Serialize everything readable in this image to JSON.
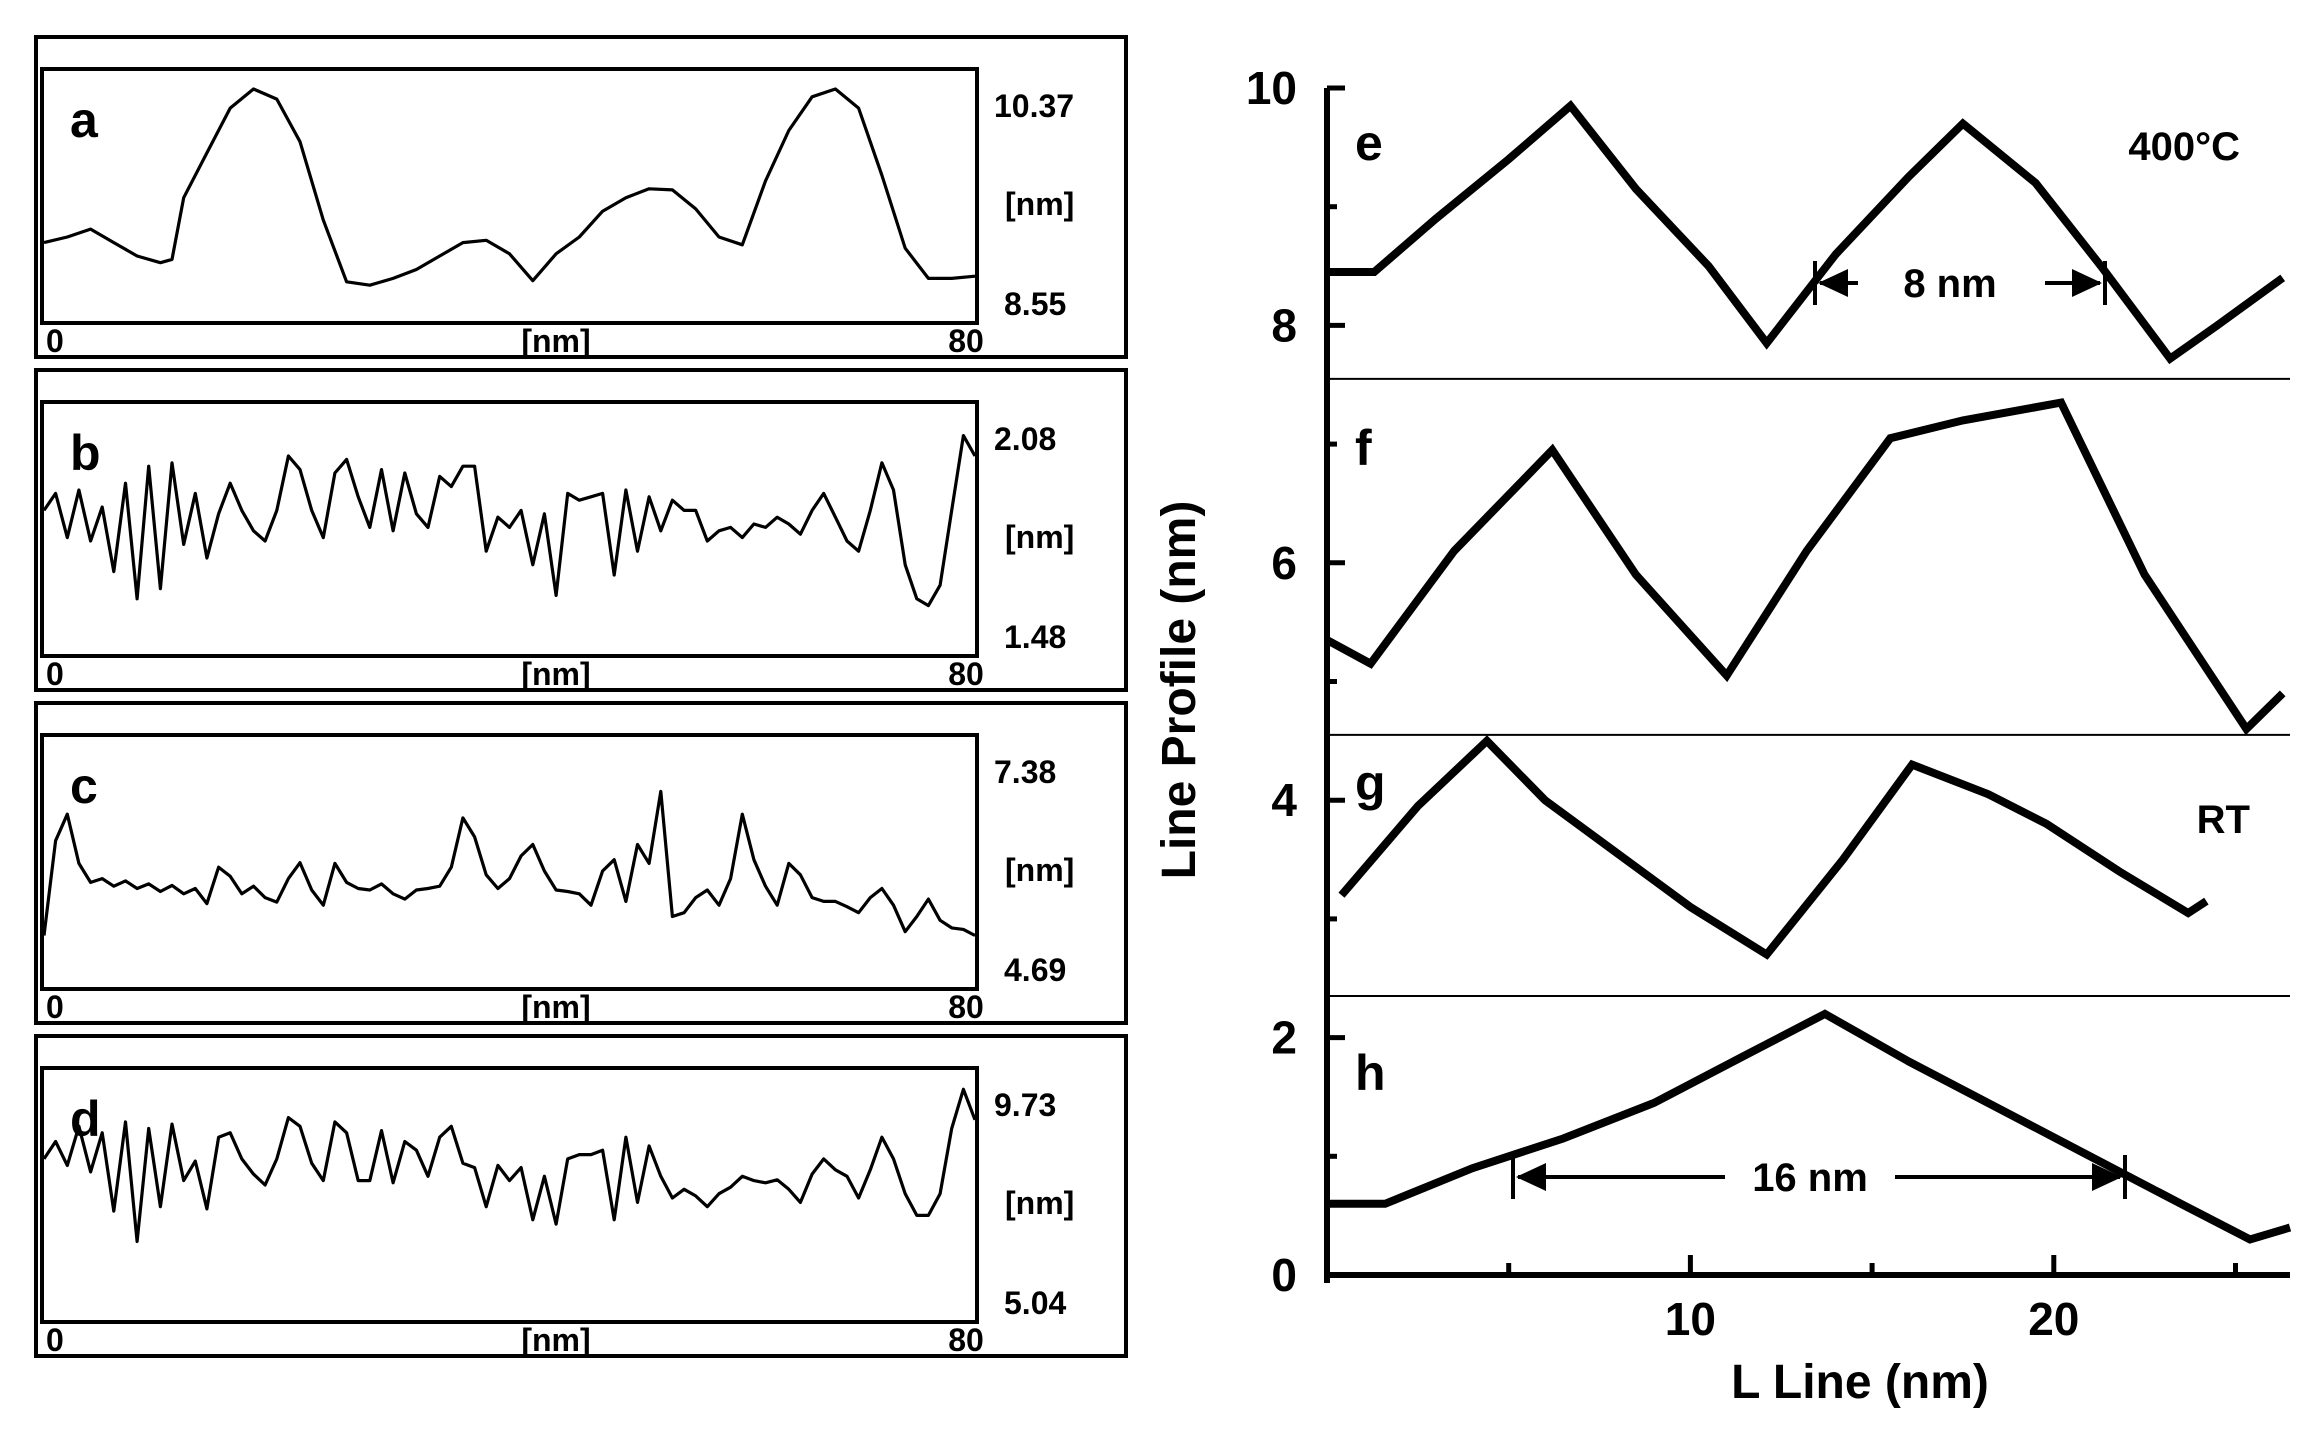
{
  "chart_data": [
    {
      "type": "line",
      "panel": "a",
      "xlabel": "[nm]",
      "x_range_labels": [
        "0",
        "80"
      ],
      "x_range": [
        0,
        80
      ],
      "ylabel": "[nm]",
      "y_range_labels": [
        "10.37",
        "8.55"
      ],
      "y_range": [
        8.55,
        10.37
      ],
      "series": [
        {
          "name": "a",
          "x": [
            0,
            2,
            4,
            6,
            8,
            10,
            11,
            12,
            14,
            16,
            18,
            20,
            22,
            24,
            26,
            28,
            30,
            32,
            34,
            36,
            38,
            40,
            42,
            44,
            46,
            48,
            50,
            52,
            54,
            56,
            58,
            60,
            62,
            64,
            66,
            68,
            70,
            72,
            74,
            76,
            78,
            80
          ],
          "y": [
            9.0,
            9.05,
            9.12,
            9.0,
            8.88,
            8.82,
            8.85,
            9.4,
            9.8,
            10.2,
            10.37,
            10.28,
            9.9,
            9.2,
            8.65,
            8.62,
            8.68,
            8.76,
            8.88,
            9.0,
            9.02,
            8.9,
            8.66,
            8.9,
            9.05,
            9.28,
            9.4,
            9.48,
            9.47,
            9.3,
            9.05,
            8.98,
            9.55,
            10.0,
            10.3,
            10.37,
            10.2,
            9.6,
            8.95,
            8.68,
            8.68,
            8.7
          ]
        }
      ]
    },
    {
      "type": "line",
      "panel": "b",
      "xlabel": "[nm]",
      "x_range_labels": [
        "0",
        "80"
      ],
      "x_range": [
        0,
        80
      ],
      "ylabel": "[nm]",
      "y_range_labels": [
        "2.08",
        "1.48"
      ],
      "y_range": [
        1.48,
        2.08
      ],
      "series": [
        {
          "name": "b",
          "x": [
            0,
            1,
            2,
            3,
            4,
            5,
            6,
            7,
            8,
            9,
            10,
            11,
            12,
            13,
            14,
            15,
            16,
            17,
            18,
            19,
            20,
            21,
            22,
            23,
            24,
            25,
            26,
            27,
            28,
            29,
            30,
            31,
            32,
            33,
            34,
            35,
            36,
            37,
            38,
            39,
            40,
            41,
            42,
            43,
            44,
            45,
            46,
            47,
            48,
            49,
            50,
            51,
            52,
            53,
            54,
            55,
            56,
            57,
            58,
            59,
            60,
            61,
            62,
            63,
            64,
            65,
            66,
            67,
            68,
            69,
            70,
            71,
            72,
            73,
            74,
            75,
            76,
            77,
            78,
            79,
            80
          ],
          "y": [
            1.82,
            1.87,
            1.74,
            1.88,
            1.73,
            1.83,
            1.64,
            1.9,
            1.56,
            1.95,
            1.59,
            1.96,
            1.72,
            1.87,
            1.68,
            1.81,
            1.9,
            1.82,
            1.76,
            1.73,
            1.82,
            1.98,
            1.94,
            1.82,
            1.74,
            1.93,
            1.97,
            1.86,
            1.77,
            1.94,
            1.76,
            1.93,
            1.81,
            1.77,
            1.92,
            1.89,
            1.95,
            1.95,
            1.7,
            1.8,
            1.77,
            1.82,
            1.66,
            1.81,
            1.57,
            1.87,
            1.85,
            1.86,
            1.87,
            1.63,
            1.88,
            1.7,
            1.86,
            1.76,
            1.85,
            1.82,
            1.82,
            1.73,
            1.76,
            1.77,
            1.74,
            1.78,
            1.77,
            1.8,
            1.78,
            1.75,
            1.82,
            1.87,
            1.8,
            1.73,
            1.7,
            1.82,
            1.96,
            1.88,
            1.66,
            1.56,
            1.54,
            1.6,
            1.82,
            2.04,
            1.98
          ]
        }
      ]
    },
    {
      "type": "line",
      "panel": "c",
      "xlabel": "[nm]",
      "x_range_labels": [
        "0",
        "80"
      ],
      "x_range": [
        0,
        80
      ],
      "ylabel": "[nm]",
      "y_range_labels": [
        "7.38",
        "4.69"
      ],
      "y_range": [
        4.69,
        7.38
      ],
      "series": [
        {
          "name": "c",
          "x": [
            0,
            1,
            2,
            3,
            4,
            5,
            6,
            7,
            8,
            9,
            10,
            11,
            12,
            13,
            14,
            15,
            16,
            17,
            18,
            19,
            20,
            21,
            22,
            23,
            24,
            25,
            26,
            27,
            28,
            29,
            30,
            31,
            32,
            33,
            34,
            35,
            36,
            37,
            38,
            39,
            40,
            41,
            42,
            43,
            44,
            45,
            46,
            47,
            48,
            49,
            50,
            51,
            52,
            53,
            54,
            55,
            56,
            57,
            58,
            59,
            60,
            61,
            62,
            63,
            64,
            65,
            66,
            67,
            68,
            69,
            70,
            71,
            72,
            73,
            74,
            75,
            76,
            77,
            78,
            79,
            80
          ],
          "y": [
            5.0,
            6.25,
            6.6,
            5.95,
            5.7,
            5.75,
            5.65,
            5.72,
            5.62,
            5.68,
            5.58,
            5.66,
            5.55,
            5.62,
            5.42,
            5.9,
            5.78,
            5.55,
            5.65,
            5.5,
            5.44,
            5.75,
            5.96,
            5.6,
            5.4,
            5.95,
            5.7,
            5.62,
            5.6,
            5.68,
            5.55,
            5.48,
            5.6,
            5.62,
            5.65,
            5.9,
            6.55,
            6.3,
            5.8,
            5.62,
            5.75,
            6.05,
            6.2,
            5.85,
            5.6,
            5.58,
            5.55,
            5.4,
            5.85,
            6.0,
            5.45,
            6.2,
            5.95,
            6.9,
            5.25,
            5.3,
            5.5,
            5.6,
            5.4,
            5.75,
            6.6,
            6.0,
            5.65,
            5.4,
            5.95,
            5.8,
            5.5,
            5.45,
            5.45,
            5.38,
            5.3,
            5.5,
            5.62,
            5.4,
            5.05,
            5.25,
            5.48,
            5.2,
            5.1,
            5.08,
            5.0
          ]
        }
      ]
    },
    {
      "type": "line",
      "panel": "d",
      "xlabel": "[nm]",
      "x_range_labels": [
        "0",
        "80"
      ],
      "x_range": [
        0,
        80
      ],
      "ylabel": "[nm]",
      "y_range_labels": [
        "9.73",
        "5.04"
      ],
      "y_range": [
        5.04,
        9.73
      ],
      "series": [
        {
          "name": "d",
          "x": [
            0,
            1,
            2,
            3,
            4,
            5,
            6,
            7,
            8,
            9,
            10,
            11,
            12,
            13,
            14,
            15,
            16,
            17,
            18,
            19,
            20,
            21,
            22,
            23,
            24,
            25,
            26,
            27,
            28,
            29,
            30,
            31,
            32,
            33,
            34,
            35,
            36,
            37,
            38,
            39,
            40,
            41,
            42,
            43,
            44,
            45,
            46,
            47,
            48,
            49,
            50,
            51,
            52,
            53,
            54,
            55,
            56,
            57,
            58,
            59,
            60,
            61,
            62,
            63,
            64,
            65,
            66,
            67,
            68,
            69,
            70,
            71,
            72,
            73,
            74,
            75,
            76,
            77,
            78,
            79,
            80
          ],
          "y": [
            8.1,
            8.5,
            7.95,
            8.85,
            7.8,
            8.7,
            6.9,
            8.95,
            6.2,
            8.8,
            7.0,
            8.9,
            7.6,
            8.05,
            6.95,
            8.6,
            8.7,
            8.1,
            7.75,
            7.5,
            8.1,
            9.05,
            8.85,
            8.0,
            7.6,
            8.95,
            8.7,
            7.6,
            7.6,
            8.75,
            7.55,
            8.5,
            8.3,
            7.7,
            8.6,
            8.85,
            8.0,
            7.9,
            7.0,
            7.95,
            7.6,
            7.9,
            6.7,
            7.7,
            6.6,
            8.1,
            8.2,
            8.2,
            8.3,
            6.7,
            8.6,
            7.1,
            8.4,
            7.7,
            7.2,
            7.4,
            7.25,
            7.0,
            7.3,
            7.45,
            7.7,
            7.6,
            7.55,
            7.62,
            7.4,
            7.1,
            7.75,
            8.1,
            7.85,
            7.7,
            7.2,
            7.85,
            8.6,
            8.1,
            7.3,
            6.8,
            6.8,
            7.3,
            8.8,
            9.7,
            9.0
          ]
        }
      ]
    },
    {
      "type": "line",
      "panels": [
        "e",
        "f",
        "g",
        "h"
      ],
      "title": "",
      "xlabel": "L Line (nm)",
      "ylabel": "Line Profile (nm)",
      "xlim": [
        0,
        26.5
      ],
      "ylim": [
        0,
        10
      ],
      "x_ticks": [
        "10",
        "20"
      ],
      "y_ticks": [
        "0",
        "2",
        "4",
        "6",
        "8",
        "10"
      ],
      "annotations": [
        "400°C",
        "RT",
        "8 nm",
        "16 nm"
      ],
      "series": [
        {
          "name": "e",
          "x": [
            0,
            1.3,
            3,
            5,
            6.7,
            8.5,
            10.5,
            12.1,
            14,
            16,
            17.5,
            19.5,
            21.3,
            23.2,
            24.5,
            26.3
          ],
          "y": [
            8.45,
            8.45,
            8.9,
            9.4,
            9.85,
            9.15,
            8.5,
            7.85,
            8.6,
            9.25,
            9.7,
            9.2,
            8.5,
            7.72,
            8.0,
            8.4
          ]
        },
        {
          "name": "f",
          "x": [
            0,
            1.2,
            3.5,
            6.2,
            8.5,
            11,
            13.2,
            15.5,
            17.5,
            20.2,
            22.5,
            25.3,
            26.3
          ],
          "y": [
            5.35,
            5.15,
            6.1,
            6.95,
            5.9,
            5.05,
            6.1,
            7.05,
            7.2,
            7.35,
            5.9,
            4.6,
            4.9
          ]
        },
        {
          "name": "g",
          "x": [
            0.4,
            2.5,
            4.4,
            6,
            8,
            10,
            12.1,
            14.2,
            16.1,
            18.2,
            19.8,
            21.8,
            23.7,
            24.2
          ],
          "y": [
            3.2,
            3.95,
            4.5,
            4.0,
            3.55,
            3.1,
            2.7,
            3.5,
            4.3,
            4.05,
            3.8,
            3.4,
            3.05,
            3.15
          ]
        },
        {
          "name": "h",
          "x": [
            0,
            1.6,
            4,
            6.5,
            9,
            11.5,
            13.7,
            16,
            18.5,
            21,
            23.5,
            25.4,
            26.5
          ],
          "y": [
            0.6,
            0.6,
            0.9,
            1.15,
            1.45,
            1.85,
            2.2,
            1.8,
            1.4,
            1.0,
            0.6,
            0.3,
            0.4
          ]
        }
      ]
    }
  ]
}
